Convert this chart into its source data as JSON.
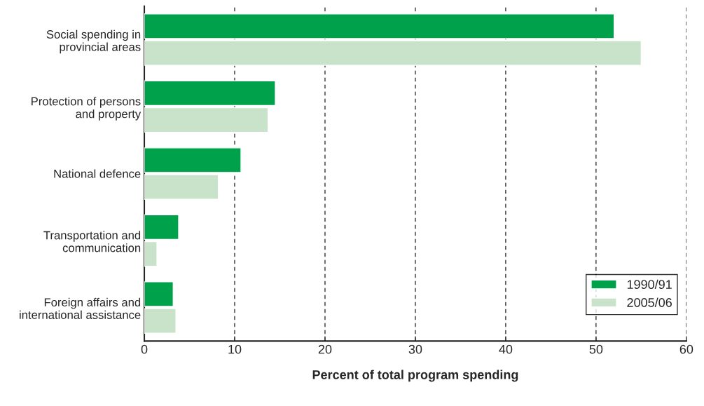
{
  "chart_data": {
    "type": "bar",
    "orientation": "horizontal",
    "xlabel": "Percent of total program spending",
    "categories": [
      "Social spending in\nprovincial areas",
      "Protection of persons\nand property",
      "National defence",
      "Transportation and\ncommunication",
      "Foreign affairs and\ninternational assistance"
    ],
    "series": [
      {
        "name": "1990/91",
        "color": "#00a14b",
        "values": [
          52,
          14.5,
          10.7,
          3.8,
          3.2
        ]
      },
      {
        "name": "2005/06",
        "color": "#c8e3c9",
        "values": [
          55,
          13.7,
          8.2,
          1.4,
          3.5
        ]
      }
    ],
    "xlim": [
      0,
      60
    ],
    "xticks": [
      0,
      10,
      20,
      30,
      40,
      50,
      60
    ],
    "grid": "x",
    "legend": "bottom right"
  }
}
